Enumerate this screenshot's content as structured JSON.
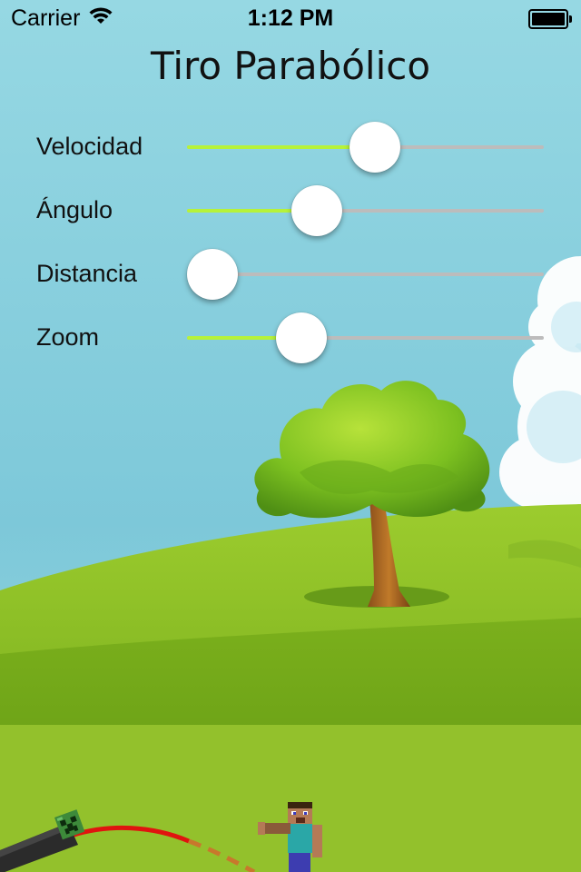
{
  "status_bar": {
    "carrier": "Carrier",
    "time": "1:12 PM"
  },
  "title": "Tiro Parabólico",
  "sliders": [
    {
      "label": "Velocidad",
      "value": 0.53
    },
    {
      "label": "Ángulo",
      "value": 0.34
    },
    {
      "label": "Distancia",
      "value": 0.0
    },
    {
      "label": "Zoom",
      "value": 0.29
    }
  ],
  "colors": {
    "slider_min_track": "#b6f23a",
    "slider_max_track": "#bcbcbc",
    "trajectory_solid": "#e0140f",
    "trajectory_dashed": "#c8782c",
    "sky_top": "#8fd3e0",
    "grass": "#93c12c"
  },
  "icons": {
    "wifi": "wifi-icon",
    "battery": "battery-icon",
    "cannon": "cannon-icon",
    "creeper": "creeper-head-icon",
    "character": "steve-character-icon",
    "tree": "tree-icon"
  }
}
